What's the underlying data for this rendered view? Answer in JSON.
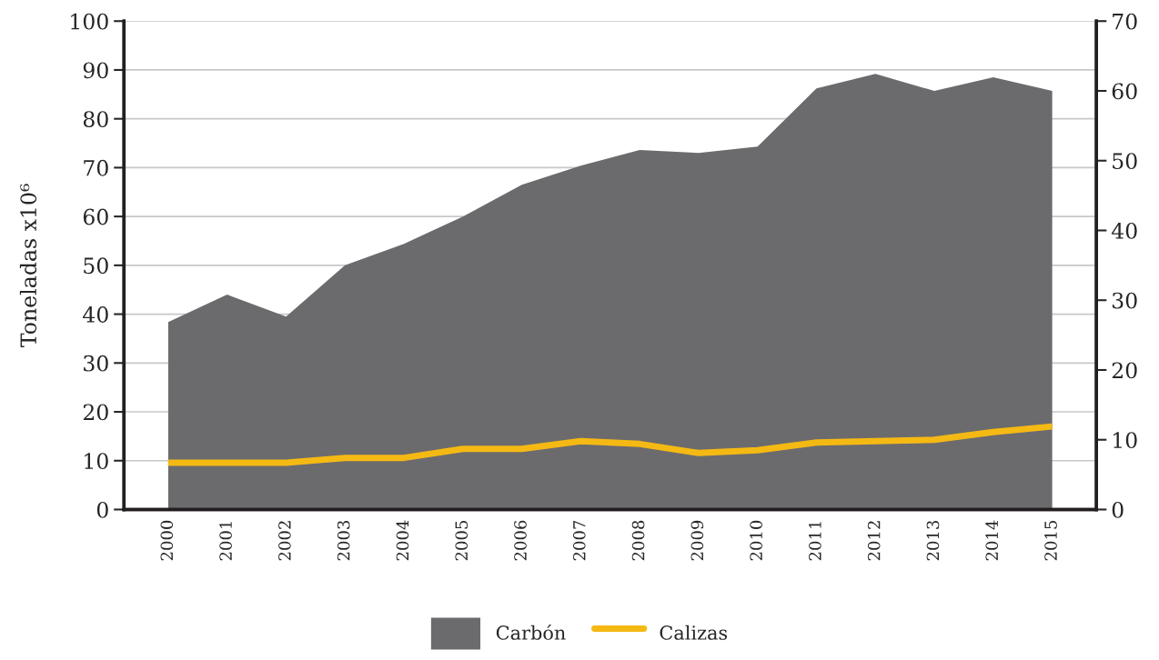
{
  "chart_data": {
    "type": "area",
    "ylabel": "Toneladas x10⁶",
    "categories": [
      "2000",
      "2001",
      "2002",
      "2003",
      "2004",
      "2005",
      "2006",
      "2007",
      "2008",
      "2009",
      "2010",
      "2011",
      "2012",
      "2013",
      "2014",
      "2015"
    ],
    "series": [
      {
        "name": "Carbón",
        "color": "#6b6b6e",
        "values": [
          38.4,
          44,
          39.5,
          50,
          54.4,
          60,
          66.5,
          70.4,
          73.6,
          73,
          74.3,
          86.2,
          89.2,
          85.7,
          88.5,
          85.7
        ]
      },
      {
        "name": "Calizas",
        "type": "line",
        "axis": "y2",
        "color": "#f5b914",
        "values": [
          6.7,
          6.7,
          6.7,
          7.4,
          7.4,
          8.7,
          8.7,
          9.8,
          9.4,
          8.1,
          8.5,
          9.6,
          9.8,
          10.0,
          11.1,
          11.9
        ]
      }
    ],
    "ylim": [
      0,
      100
    ],
    "yticks": [
      0,
      10,
      20,
      30,
      40,
      50,
      60,
      70,
      80,
      90,
      100
    ],
    "y2lim": [
      0,
      70
    ],
    "y2ticks": [
      0,
      10,
      20,
      30,
      40,
      50,
      60,
      70
    ],
    "grid": "y",
    "legend": "bottom",
    "line_style": "solid",
    "marker": "none"
  }
}
